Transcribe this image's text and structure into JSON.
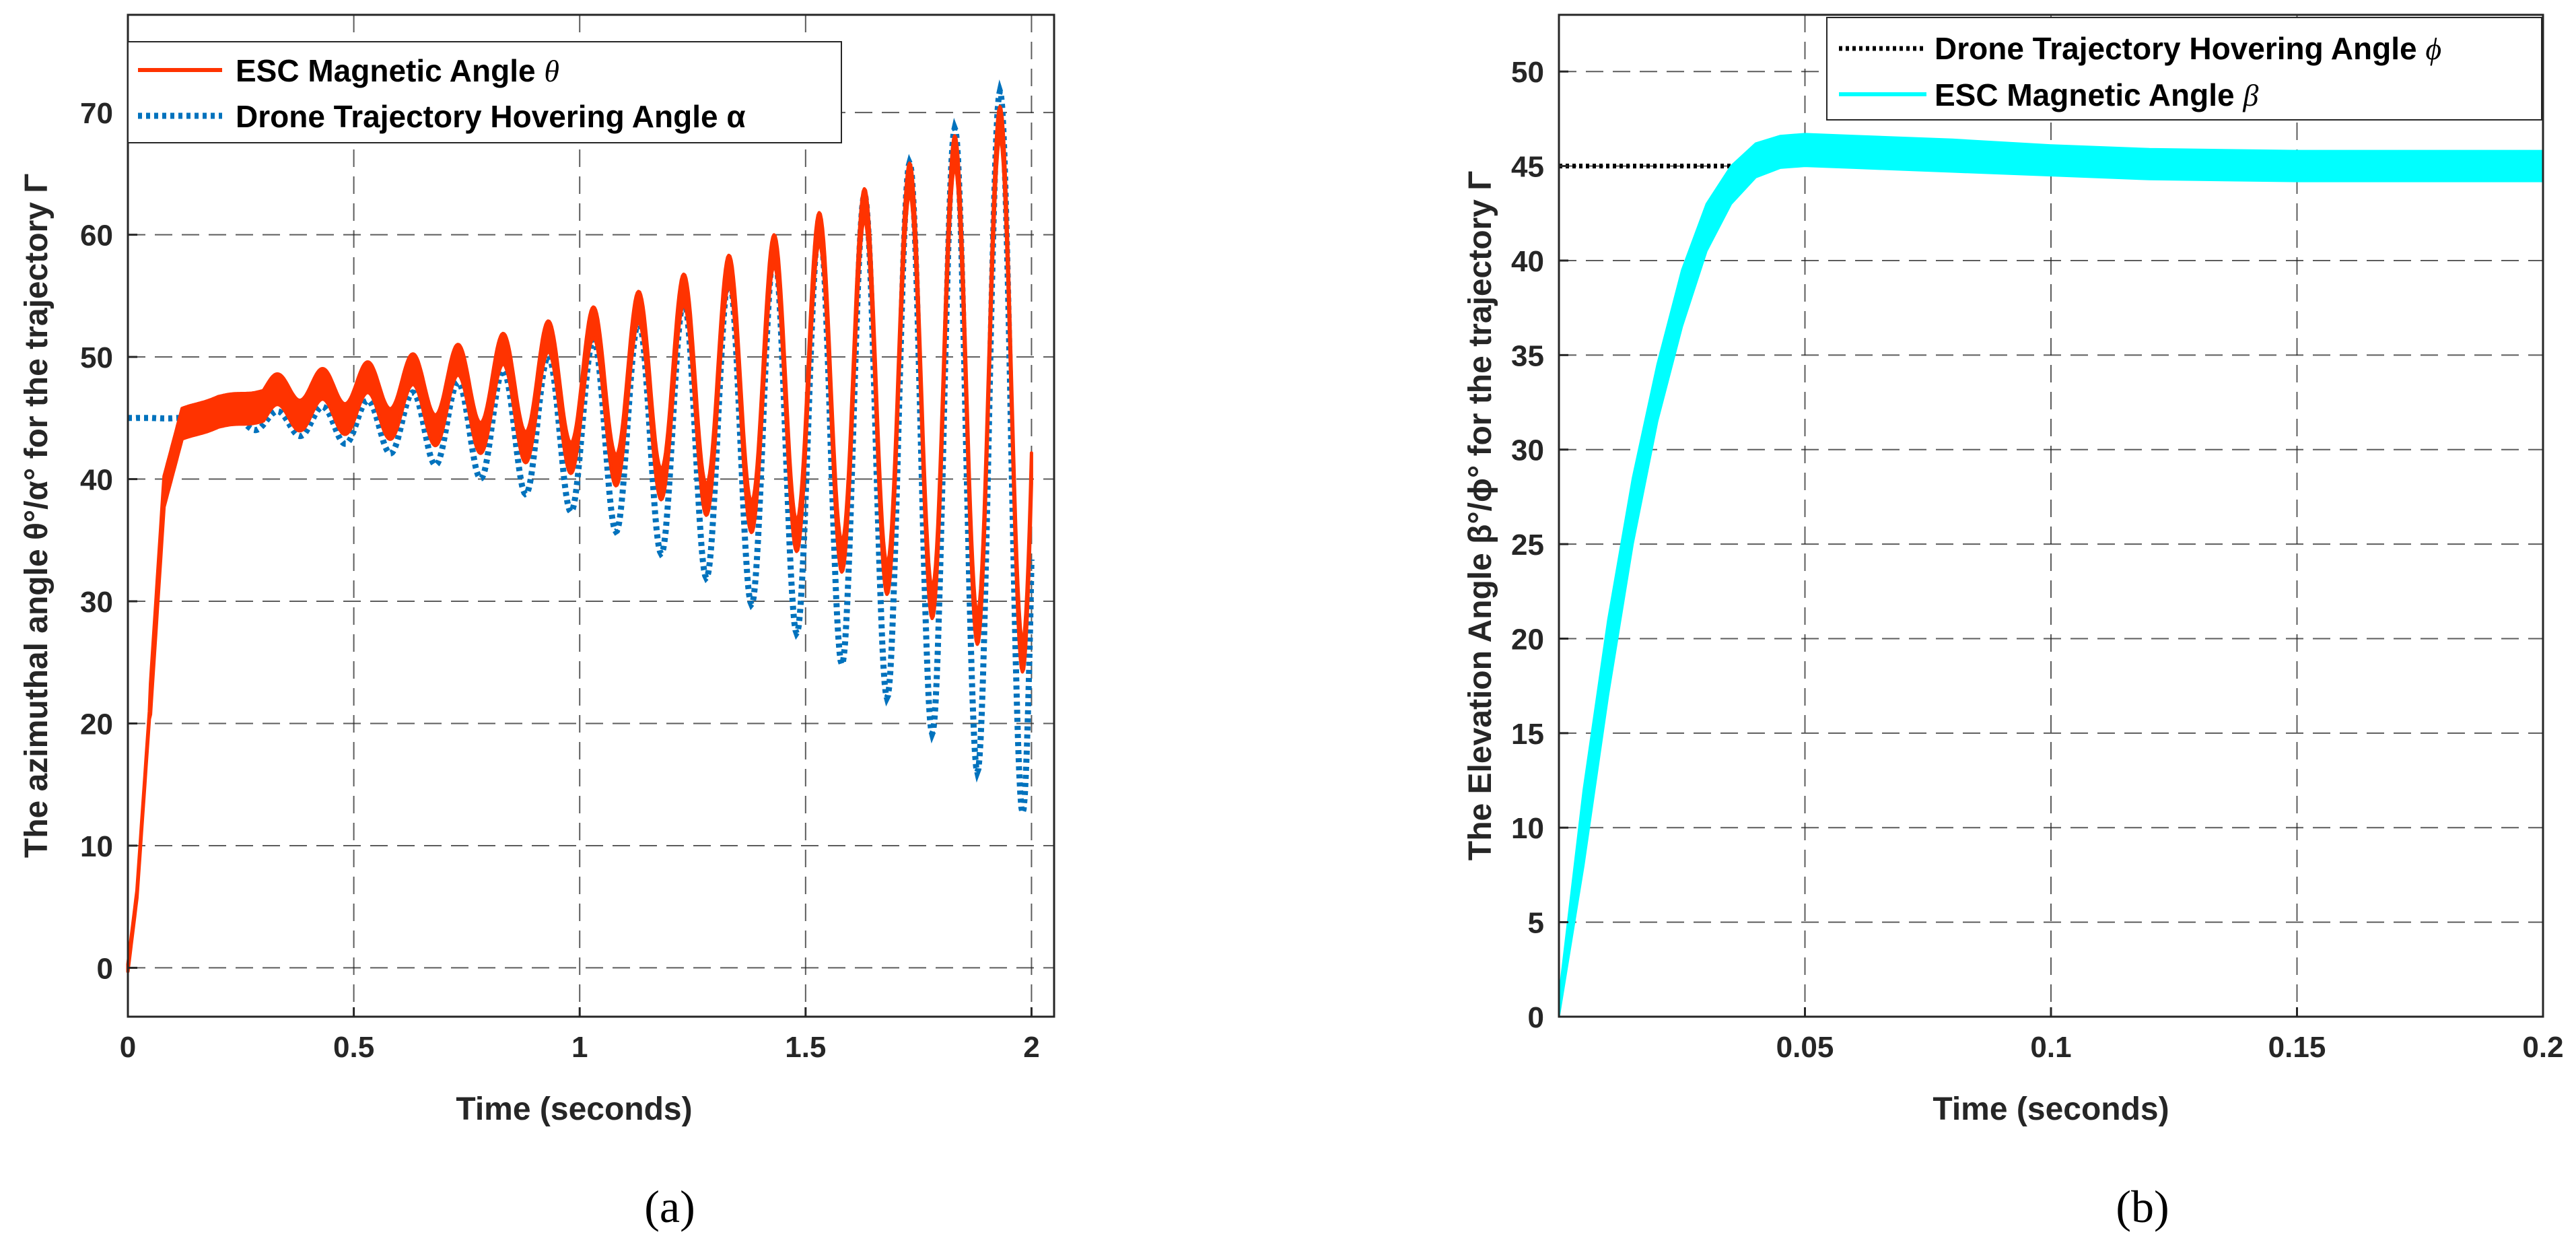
{
  "chart_data": [
    {
      "type": "line",
      "panel": "(a)",
      "xlabel": "Time (seconds)",
      "ylabel": "The azimuthal angle θ°/α° for the trajectory Γ",
      "xlim": [
        0,
        2.05
      ],
      "ylim": [
        -4,
        78
      ],
      "xticks": [
        0,
        0.5,
        1,
        1.5,
        2
      ],
      "xtick_labels": [
        "0",
        "0.5",
        "1",
        "1.5",
        "2"
      ],
      "yticks": [
        0,
        10,
        20,
        30,
        40,
        50,
        60,
        70
      ],
      "ytick_labels": [
        "0",
        "10",
        "20",
        "30",
        "40",
        "50",
        "60",
        "70"
      ],
      "grid": true,
      "legend_position": "top-left",
      "legend": [
        {
          "text": "ESC Magnetic Angle ",
          "symbol": "θ",
          "color": "#ff3300",
          "style": "solid"
        },
        {
          "text": "Drone Trajectory Hovering Angle α",
          "symbol": "",
          "color": "#0072bd",
          "style": "dotted"
        }
      ],
      "series": [
        {
          "name": "ESC Magnetic Angle θ",
          "color": "#ff3300",
          "style": "solid-band",
          "rise": {
            "x": [
              0,
              0.02,
              0.05,
              0.08,
              0.12,
              0.2,
              0.3
            ],
            "y": [
              0,
              6,
              22,
              39,
              44.5,
              45.5,
              46
            ]
          },
          "oscillation": {
            "period": 0.1,
            "center_start": 46,
            "center_end": 48,
            "amp_start": 0.6,
            "amp_end": 23,
            "band_width": 2.5,
            "end_x": 2.0
          }
        },
        {
          "name": "Drone Trajectory Hovering Angle α",
          "color": "#0072bd",
          "style": "dotted",
          "initial_value": 45,
          "oscillation": {
            "period": 0.1,
            "center_start": 45,
            "center_end": 43,
            "amp_start": 0.3,
            "amp_end": 31,
            "end_x": 2.0
          }
        }
      ],
      "caption": "(a)"
    },
    {
      "type": "line",
      "panel": "(b)",
      "xlabel": "Time (seconds)",
      "ylabel": "The Elevation Angle β°/ϕ° for the trajectory Γ",
      "xlim": [
        0,
        0.2
      ],
      "ylim": [
        0,
        53
      ],
      "xticks": [
        0.05,
        0.1,
        0.15,
        0.2
      ],
      "xtick_labels": [
        "0.05",
        "0.1",
        "0.15",
        "0.2"
      ],
      "yticks": [
        0,
        5,
        10,
        15,
        20,
        25,
        30,
        35,
        40,
        45,
        50
      ],
      "ytick_labels": [
        "0",
        "5",
        "10",
        "15",
        "20",
        "25",
        "30",
        "35",
        "40",
        "45",
        "50"
      ],
      "grid": true,
      "legend_position": "top-right",
      "legend": [
        {
          "text": "Drone Trajectory Hovering Angle ",
          "symbol": "ϕ",
          "color": "#000000",
          "style": "dotted"
        },
        {
          "text": "ESC Magnetic Angle ",
          "symbol": "β",
          "color": "#00ffff",
          "style": "solid"
        }
      ],
      "series": [
        {
          "name": "Drone Trajectory Hovering Angle ϕ",
          "color": "#000000",
          "style": "dotted",
          "x": [
            0,
            0.036
          ],
          "y": [
            45,
            45
          ]
        },
        {
          "name": "ESC Magnetic Angle β",
          "color": "#00ffff",
          "style": "band",
          "x": [
            0,
            0.005,
            0.01,
            0.015,
            0.02,
            0.025,
            0.03,
            0.035,
            0.04,
            0.045,
            0.05,
            0.06,
            0.08,
            0.1,
            0.12,
            0.15,
            0.2
          ],
          "upper": [
            1,
            12,
            21,
            28.5,
            34.5,
            39.5,
            43,
            45,
            46.2,
            46.6,
            46.7,
            46.6,
            46.4,
            46.1,
            45.9,
            45.8,
            45.8
          ],
          "lower": [
            0,
            8,
            17,
            25,
            31.5,
            36.5,
            40.5,
            43,
            44.4,
            44.9,
            45,
            44.9,
            44.7,
            44.5,
            44.3,
            44.2,
            44.2
          ]
        }
      ],
      "caption": "(b)"
    }
  ]
}
